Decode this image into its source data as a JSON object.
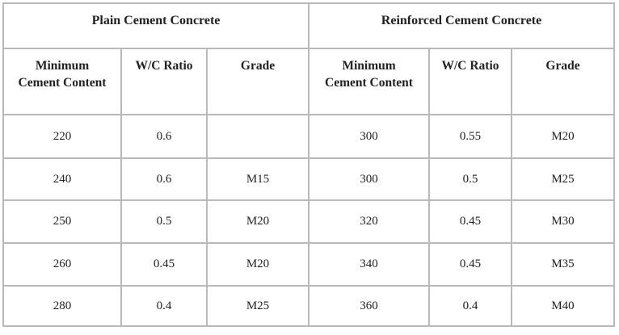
{
  "table": {
    "groups": [
      "Plain Cement Concrete",
      "Reinforced Cement Concrete"
    ],
    "columns": [
      "Minimum Cement Content",
      "W/C Ratio",
      "Grade",
      "Minimum Cement Content",
      "W/C Ratio",
      "Grade"
    ],
    "rows": [
      [
        "220",
        "0.6",
        null,
        "300",
        "0.55",
        "M20"
      ],
      [
        "240",
        "0.6",
        "M15",
        "300",
        "0.5",
        "M25"
      ],
      [
        "250",
        "0.5",
        "M20",
        "320",
        "0.45",
        "M30"
      ],
      [
        "260",
        "0.45",
        "M20",
        "340",
        "0.45",
        "M35"
      ],
      [
        "280",
        "0.4",
        "M25",
        "360",
        "0.4",
        "M40"
      ]
    ]
  }
}
